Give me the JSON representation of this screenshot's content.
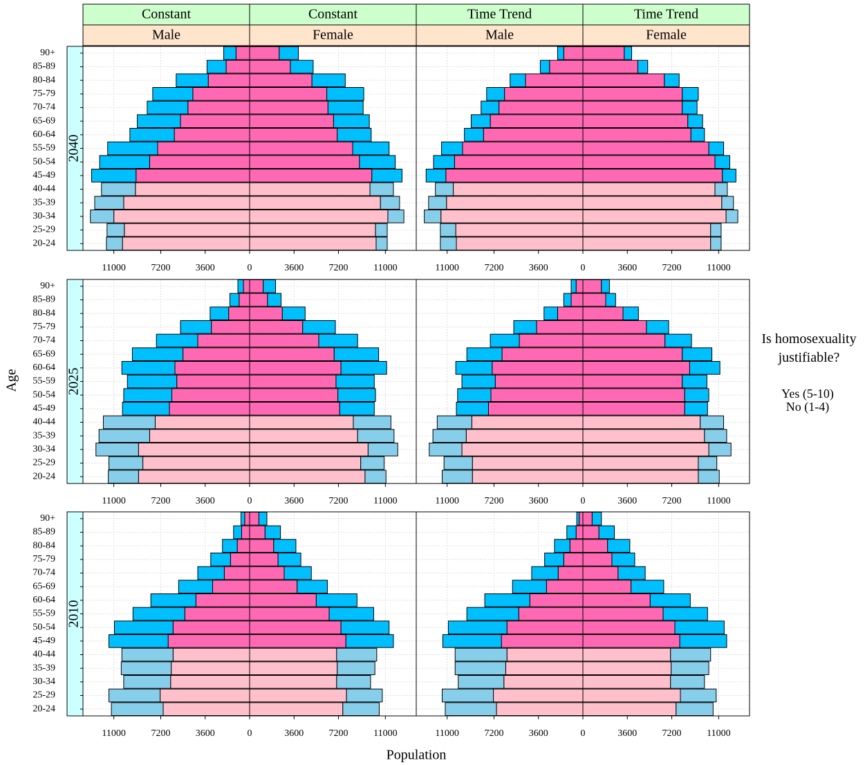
{
  "chart_data": {
    "type": "pyramid",
    "x_label": "Population",
    "y_label": "Age",
    "legend_title": "Is homosexuality justifiable?",
    "categories": [
      "90+",
      "85-89",
      "80-84",
      "75-79",
      "70-74",
      "65-69",
      "60-64",
      "55-59",
      "50-54",
      "45-49",
      "40-44",
      "35-39",
      "30-34",
      "25-29",
      "20-24"
    ],
    "light_categories": [
      "40-44",
      "35-39",
      "30-34",
      "25-29",
      "20-24"
    ],
    "series": [
      {
        "name": "Yes (5-10)",
        "color": "#ff69b4",
        "light_color": "#ffc0cb"
      },
      {
        "name": "No (1-4)",
        "color": "#00bfff",
        "light_color": "#87ceeb"
      }
    ],
    "xlim": [
      -13500,
      13500
    ],
    "xticks": [
      {
        "value": -11000,
        "label": "11000"
      },
      {
        "value": -7200,
        "label": "7200"
      },
      {
        "value": -3600,
        "label": "3600"
      },
      0,
      3600,
      7200,
      11000
    ],
    "grid": true,
    "strips": [
      {
        "scenario": "Constant",
        "sex": "Male"
      },
      {
        "scenario": "Constant",
        "sex": "Female"
      },
      {
        "scenario": "Time Trend",
        "sex": "Male"
      },
      {
        "scenario": "Time Trend",
        "sex": "Female"
      }
    ],
    "rows": [
      {
        "year": "2040",
        "cells": [
          {
            "values": [
              [
                1100,
                1900,
                3350,
                4600,
                5000,
                5600,
                6100,
                7450,
                8100,
                9200,
                9250,
                10200,
                11000,
                10150,
                10300
              ],
              [
                1000,
                1550,
                2600,
                3250,
                3300,
                3500,
                3600,
                4050,
                4050,
                3600,
                2750,
                2350,
                1900,
                1400,
                1300
              ]
            ]
          },
          {
            "values": [
              [
                2400,
                3300,
                5050,
                6250,
                6350,
                6800,
                7100,
                8350,
                8900,
                9900,
                9750,
                10600,
                11200,
                10200,
                10250
              ],
              [
                1550,
                1850,
                2700,
                3000,
                2850,
                2900,
                2750,
                2950,
                2900,
                2450,
                1900,
                1550,
                1300,
                950,
                900
              ]
            ]
          },
          {
            "values": [
              [
                1550,
                2700,
                4650,
                6350,
                6800,
                7500,
                8050,
                9750,
                10400,
                11100,
                10500,
                11050,
                11500,
                10300,
                10250
              ],
              [
                500,
                750,
                1250,
                1450,
                1450,
                1550,
                1550,
                1700,
                1700,
                1600,
                1450,
                1450,
                1350,
                1250,
                1300
              ]
            ]
          },
          {
            "values": [
              [
                3350,
                4450,
                6600,
                8050,
                8050,
                8500,
                8750,
                10200,
                10700,
                11300,
                10700,
                11250,
                11600,
                10350,
                10350
              ],
              [
                600,
                800,
                1200,
                1300,
                1200,
                1200,
                1100,
                1200,
                1200,
                1100,
                1000,
                950,
                950,
                850,
                850
              ]
            ]
          }
        ]
      },
      {
        "year": "2025",
        "cells": [
          {
            "values": [
              [
                500,
                850,
                1700,
                3100,
                4200,
                5400,
                6050,
                5900,
                6300,
                6500,
                7650,
                8100,
                9000,
                8650,
                9000
              ],
              [
                450,
                750,
                1500,
                2500,
                3350,
                4100,
                4300,
                4000,
                3900,
                3800,
                4200,
                4100,
                3450,
                2750,
                2450
              ]
            ]
          },
          {
            "values": [
              [
                1100,
                1450,
                2650,
                4300,
                5600,
                6850,
                7400,
                7000,
                7150,
                7300,
                8400,
                8750,
                9600,
                9000,
                9350
              ],
              [
                1000,
                1100,
                1850,
                2650,
                3150,
                3600,
                3700,
                3100,
                3050,
                2800,
                3050,
                2950,
                2400,
                1900,
                1700
              ]
            ]
          },
          {
            "values": [
              [
                550,
                950,
                2050,
                3750,
                5150,
                6550,
                7350,
                7100,
                7450,
                7650,
                9000,
                9450,
                9800,
                8950,
                8950
              ],
              [
                400,
                600,
                1100,
                1850,
                2350,
                2850,
                2950,
                2700,
                2700,
                2600,
                2800,
                2700,
                2650,
                2300,
                2450
              ]
            ]
          },
          {
            "values": [
              [
                1500,
                1850,
                3250,
                5150,
                6650,
                8050,
                8650,
                8050,
                8250,
                8250,
                9500,
                9850,
                10200,
                9350,
                9350
              ],
              [
                650,
                800,
                1250,
                1800,
                2150,
                2400,
                2450,
                2000,
                1950,
                1850,
                1900,
                1800,
                1800,
                1500,
                1700
              ]
            ]
          }
        ]
      },
      {
        "year": "2010",
        "cells": [
          {
            "values": [
              [
                400,
                650,
                1000,
                1550,
                2050,
                3000,
                4350,
                5250,
                6200,
                6600,
                6200,
                6350,
                6400,
                7250,
                7000
              ],
              [
                300,
                650,
                1200,
                1600,
                2150,
                2750,
                3650,
                4200,
                4750,
                4800,
                4150,
                4050,
                3800,
                4150,
                4200
              ]
            ]
          },
          {
            "values": [
              [
                750,
                1250,
                1950,
                2300,
                2800,
                3850,
                5400,
                6450,
                7400,
                7800,
                7050,
                7100,
                7050,
                7850,
                7550
              ],
              [
                650,
                1250,
                1800,
                1850,
                2200,
                2450,
                3300,
                3600,
                3900,
                3850,
                3250,
                3050,
                2750,
                2900,
                2950
              ]
            ]
          },
          {
            "values": [
              [
                300,
                550,
                1050,
                1550,
                2000,
                2950,
                4300,
                5200,
                6150,
                6600,
                6150,
                6250,
                6400,
                7250,
                7000
              ],
              [
                200,
                750,
                1250,
                1550,
                2150,
                2750,
                3650,
                4200,
                4750,
                4750,
                4200,
                4100,
                3700,
                4150,
                4150
              ]
            ]
          },
          {
            "values": [
              [
                750,
                1300,
                2000,
                2350,
                2850,
                3900,
                5450,
                6500,
                7450,
                7850,
                7100,
                7150,
                7100,
                7900,
                7550
              ],
              [
                750,
                1250,
                1800,
                1850,
                2200,
                2650,
                3250,
                3600,
                4000,
                3800,
                3250,
                3050,
                2750,
                2900,
                3000
              ]
            ]
          }
        ]
      }
    ]
  }
}
